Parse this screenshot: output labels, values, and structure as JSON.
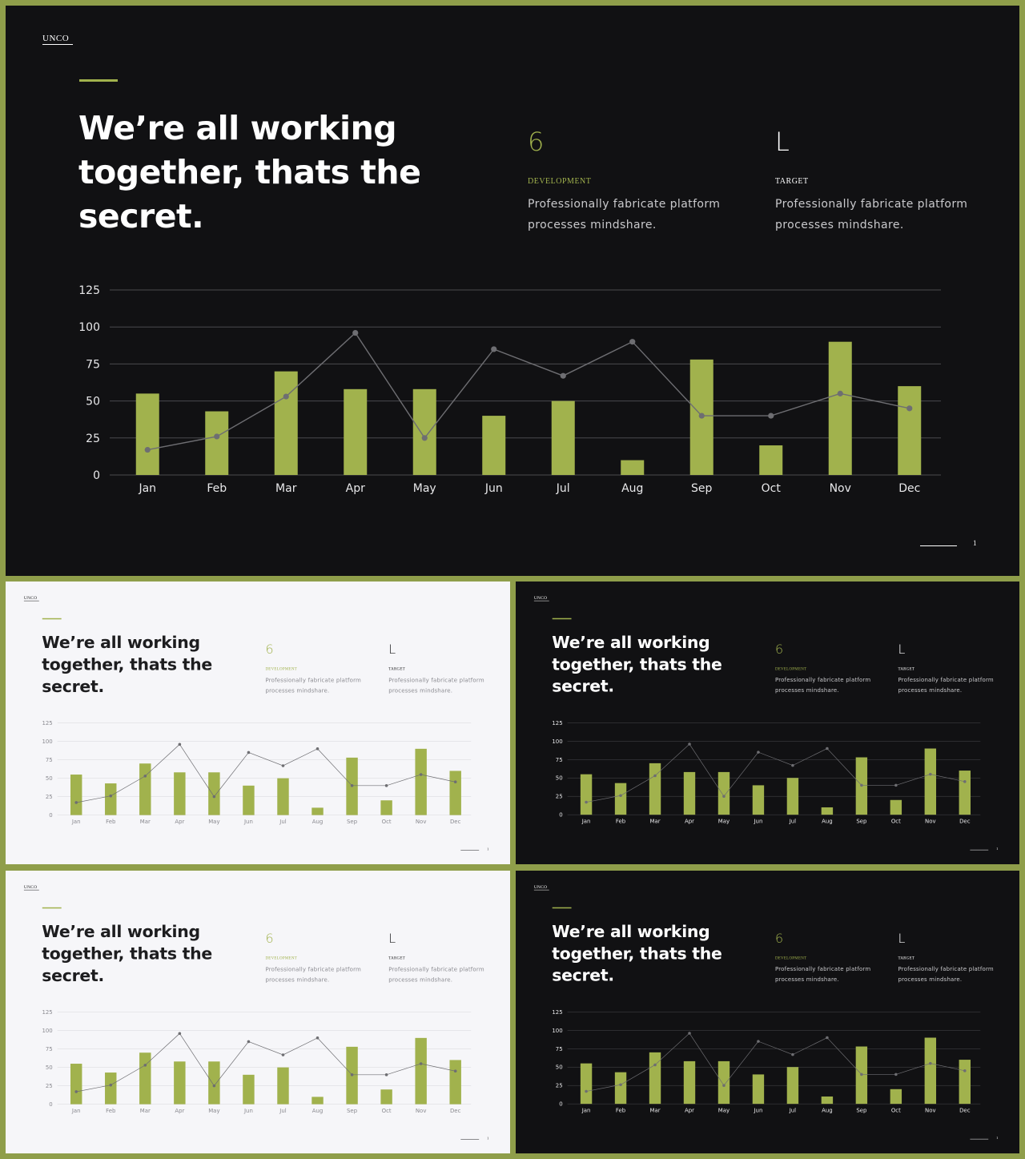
{
  "slide": {
    "brand": "UNCO",
    "headline": "We’re all working together, thats the secret.",
    "stats": [
      {
        "number": "6",
        "label": "DEVELOPMENT",
        "description": "Professionally fabricate platform processes mindshare."
      },
      {
        "number": "L",
        "label": "TARGET",
        "description": "Professionally fabricate platform processes mindshare."
      }
    ],
    "page_number": "1"
  },
  "colors": {
    "frame": "#8f9e4a",
    "accent": "#a1b24d",
    "dark_background": "#111113",
    "light_background": "#f6f6f9",
    "line_series": "#6e6e72"
  },
  "variants": [
    "dark",
    "light",
    "dark",
    "light",
    "dark"
  ],
  "chart_data": {
    "type": "bar",
    "categories": [
      "Jan",
      "Feb",
      "Mar",
      "Apr",
      "May",
      "Jun",
      "Jul",
      "Aug",
      "Sep",
      "Oct",
      "Nov",
      "Dec"
    ],
    "series": [
      {
        "type": "bar",
        "values": [
          55,
          43,
          70,
          58,
          58,
          40,
          50,
          10,
          78,
          20,
          90,
          60
        ]
      },
      {
        "type": "line",
        "values": [
          17,
          26,
          53,
          96,
          25,
          85,
          67,
          90,
          40,
          40,
          55,
          45
        ]
      }
    ],
    "ylim": [
      0,
      125
    ],
    "yticks": [
      0,
      25,
      50,
      75,
      100,
      125
    ],
    "grid": true,
    "legend": "none"
  }
}
